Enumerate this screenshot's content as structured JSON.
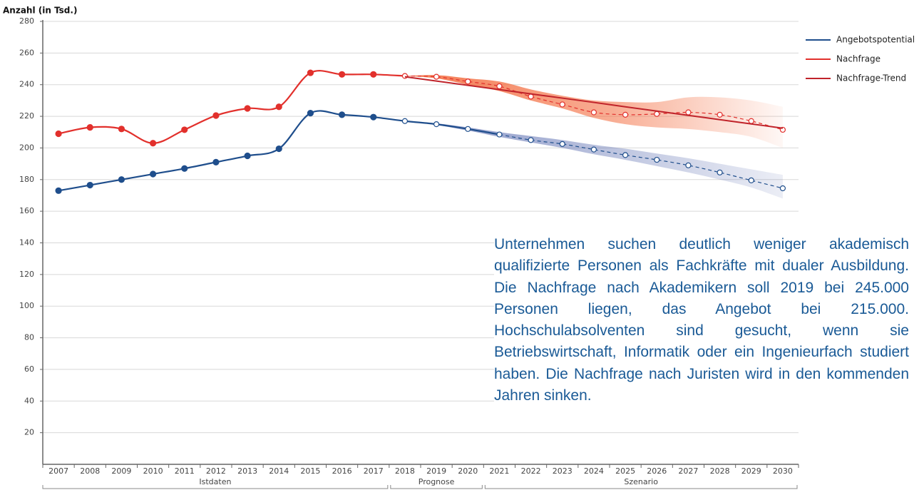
{
  "chart_data": {
    "type": "line",
    "y_label": "Anzahl (in Tsd.)",
    "categories": [
      "2007",
      "2008",
      "2009",
      "2010",
      "2011",
      "2012",
      "2013",
      "2014",
      "2015",
      "2016",
      "2017",
      "2018",
      "2019",
      "2020",
      "2021",
      "2022",
      "2023",
      "2024",
      "2025",
      "2026",
      "2027",
      "2028",
      "2029",
      "2030"
    ],
    "groups": [
      {
        "label": "Istdaten",
        "from": 0,
        "to": 10
      },
      {
        "label": "Prognose",
        "from": 11,
        "to": 13
      },
      {
        "label": "Szenario",
        "from": 14,
        "to": 23
      }
    ],
    "series": [
      {
        "name": "Angebotspotential",
        "color": "#1f4e8c",
        "band_color": "#5b6db0",
        "values": [
          173,
          176.5,
          180,
          183.5,
          187,
          191,
          195,
          199.5,
          222,
          221,
          219.5,
          217,
          215,
          212,
          208.5,
          205,
          202.5,
          199,
          195.5,
          192.5,
          189,
          184.5,
          179.5,
          174.5
        ],
        "band_upper": [
          null,
          null,
          null,
          null,
          null,
          null,
          null,
          null,
          null,
          null,
          null,
          217,
          215.5,
          213,
          210,
          207.5,
          205,
          202,
          199.5,
          196.5,
          193.5,
          190,
          186.5,
          183
        ],
        "band_lower": [
          null,
          null,
          null,
          null,
          null,
          null,
          null,
          null,
          null,
          null,
          null,
          217,
          214.5,
          211,
          207,
          203.5,
          200,
          196,
          192.5,
          188.5,
          184.5,
          180,
          175,
          168
        ]
      },
      {
        "name": "Nachfrage",
        "color": "#e2302c",
        "band_color": "#f36a3c",
        "values": [
          209,
          213,
          212,
          203,
          211.5,
          220.5,
          225,
          226,
          247.5,
          246.5,
          246.5,
          245.5,
          245,
          242,
          239,
          232.5,
          227.5,
          222.5,
          221,
          221.5,
          222.5,
          221,
          217,
          211.5
        ],
        "band_upper": [
          null,
          null,
          null,
          null,
          null,
          null,
          null,
          null,
          null,
          null,
          null,
          245.5,
          246,
          244,
          242,
          237,
          233,
          230,
          229,
          229,
          232,
          232,
          230,
          226
        ],
        "band_lower": [
          null,
          null,
          null,
          null,
          null,
          null,
          null,
          null,
          null,
          null,
          null,
          245.5,
          244,
          240,
          236,
          230,
          225,
          219,
          215,
          213,
          212,
          210,
          207,
          200
        ]
      },
      {
        "name": "Nachfrage-Trend",
        "color": "#c0232a",
        "values": [
          null,
          null,
          null,
          null,
          null,
          null,
          null,
          null,
          null,
          null,
          null,
          245,
          242.3,
          239.6,
          236.9,
          234.2,
          231.5,
          228.8,
          226,
          223.3,
          220.6,
          217.9,
          215.2,
          212.5
        ]
      }
    ],
    "ylim": [
      0,
      280
    ],
    "yticks": [
      20,
      40,
      60,
      80,
      100,
      120,
      140,
      160,
      180,
      200,
      220,
      240,
      260,
      280
    ],
    "grid": true,
    "legend": "top-right",
    "annotation": "Unternehmen suchen deutlich weniger akademisch qualifizierte Personen als Fachkräfte mit dualer Ausbildung. Die Nachfrage nach Akademikern soll 2019 bei 245.000 Personen liegen, das Angebot bei 215.000. Hochschulabsolventen sind gesucht, wenn sie Betriebswirtschaft, Informatik oder ein Ingenieurfach studiert haben. Die Nachfrage nach Juristen wird in den kommenden Jahren sinken.",
    "annotation_color": "#1a5a96"
  }
}
